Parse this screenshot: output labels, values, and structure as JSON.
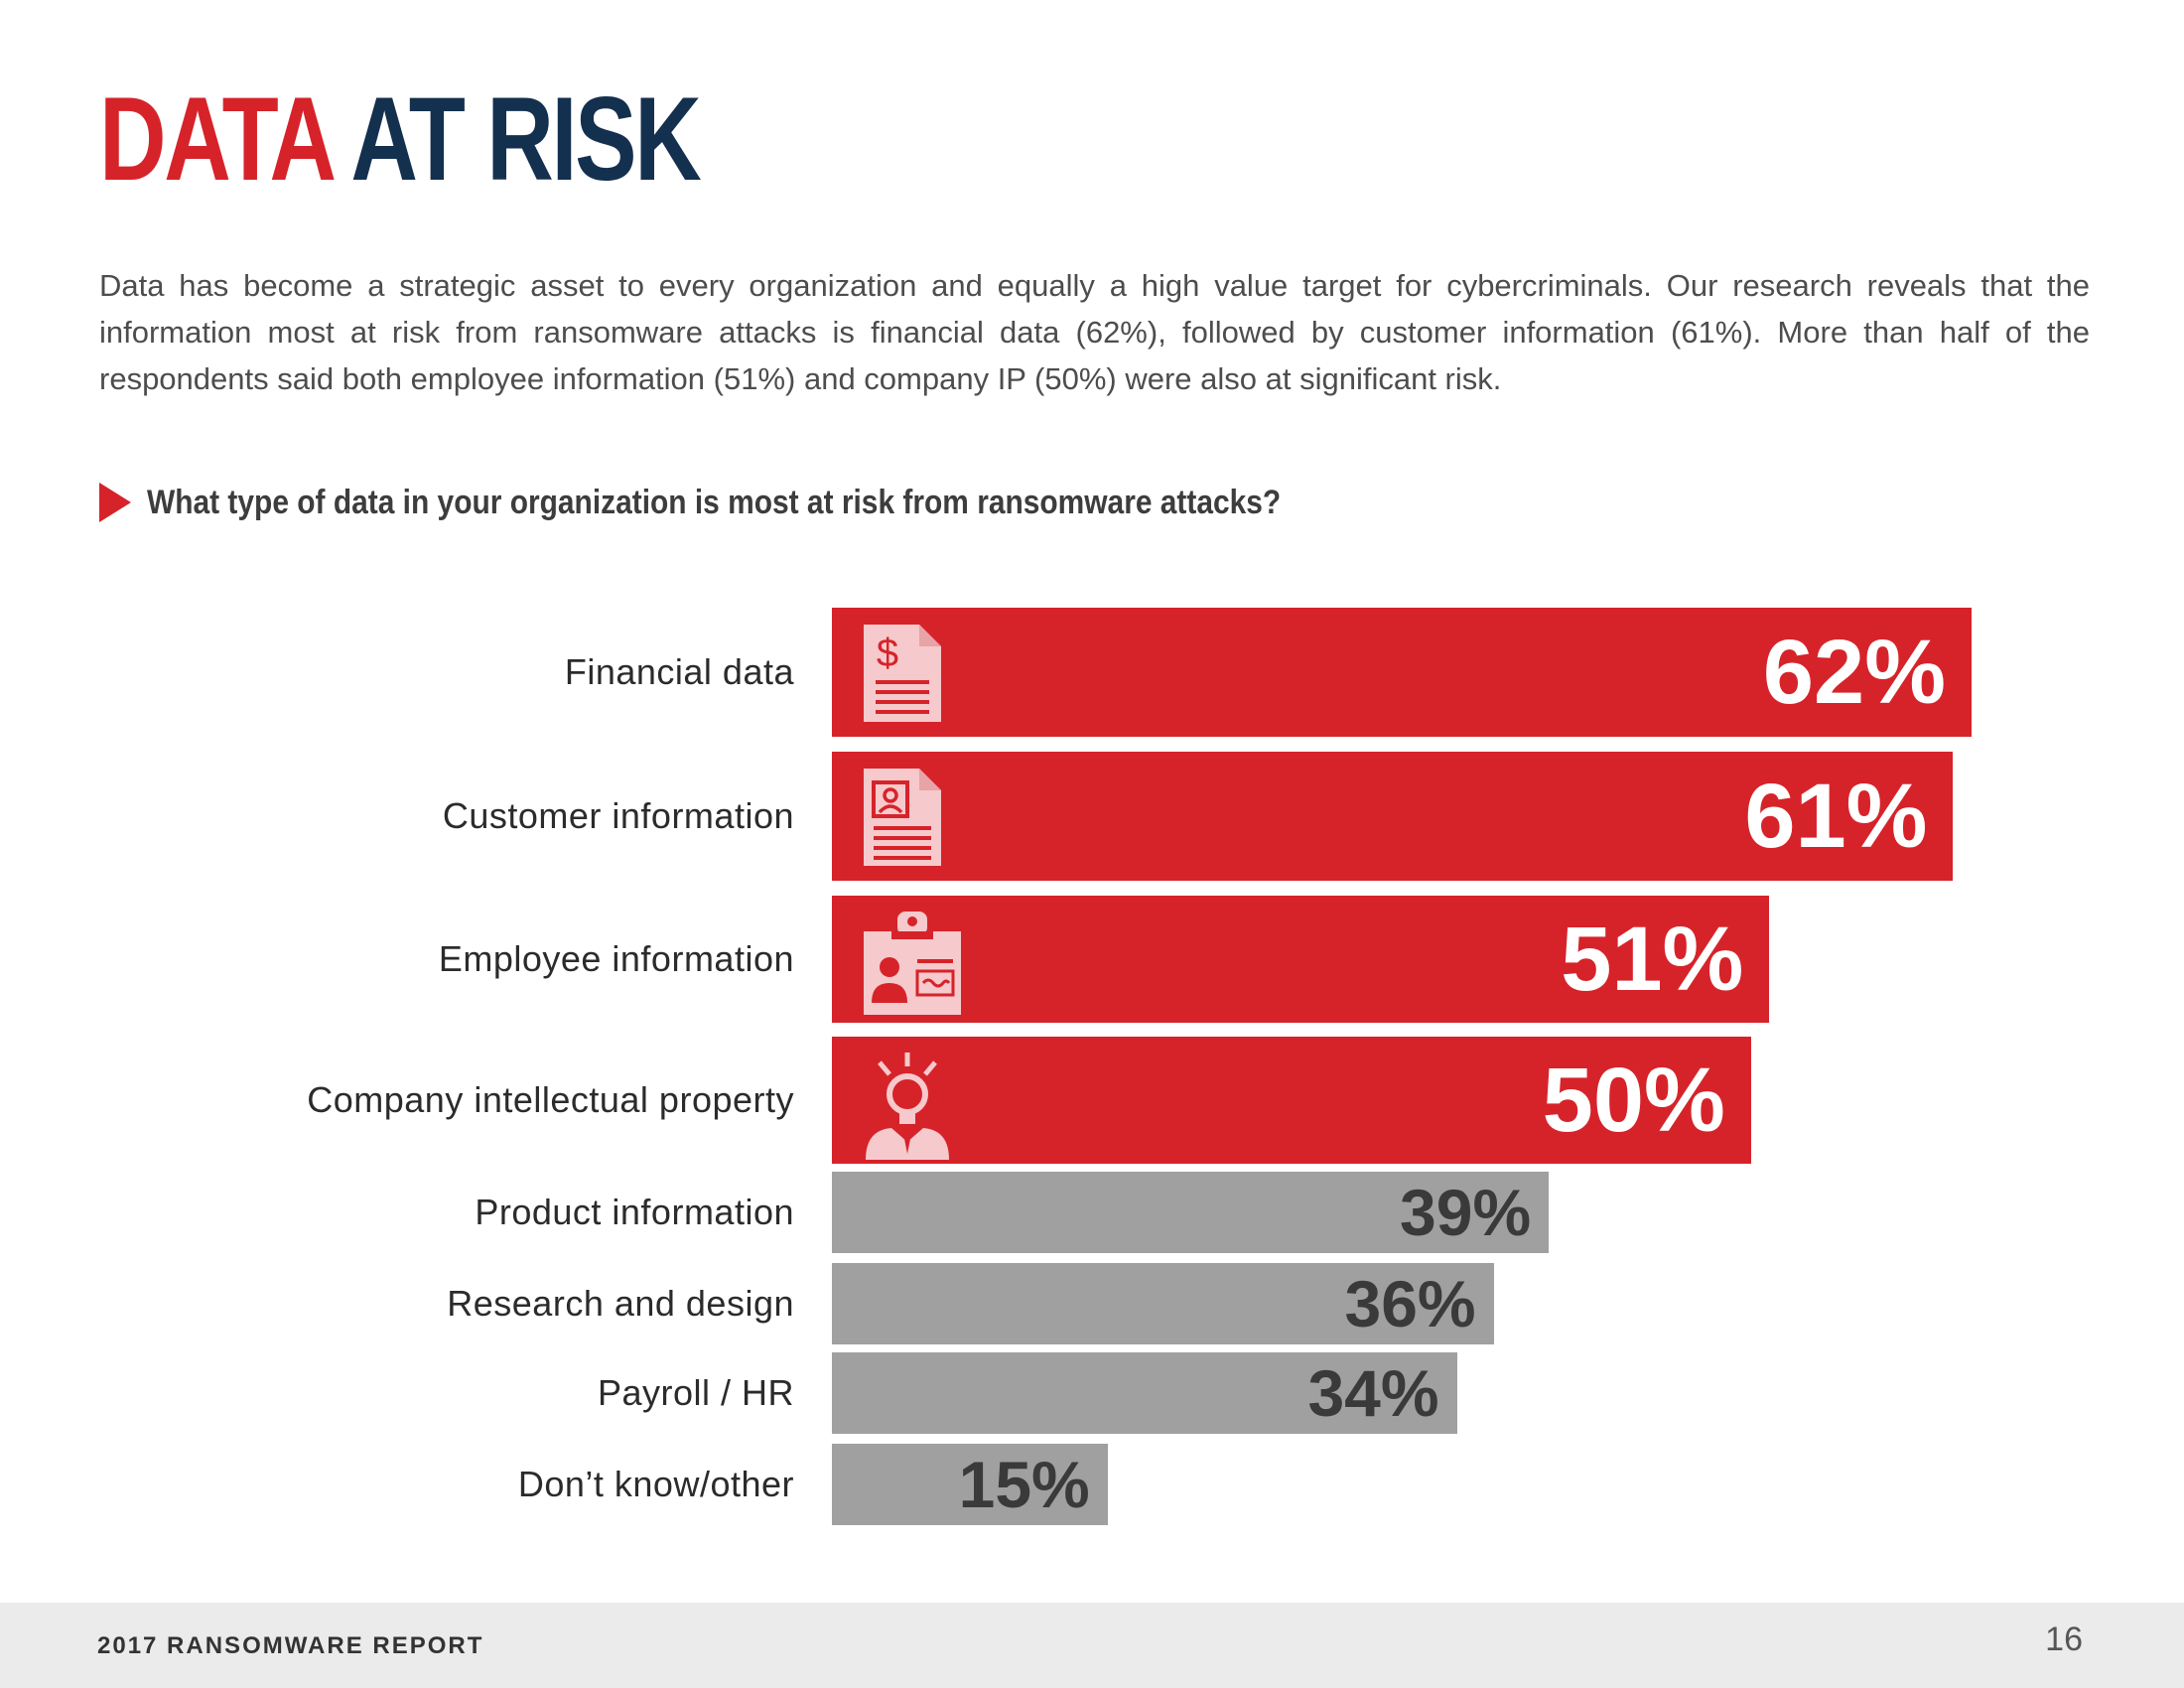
{
  "header": {
    "title_part1": "DATA",
    "title_part2": "AT RISK"
  },
  "intro": {
    "text": "Data has become a strategic asset to every organization and equally a high value target for cybercriminals. Our research reveals that the information most at risk from ransomware attacks is financial data (62%), followed by customer information (61%). More than half of the respondents said both employee information (51%) and company IP (50%) were also at significant risk."
  },
  "question": {
    "text": "What type of data in your organization is most at risk from ransomware attacks?"
  },
  "colors": {
    "accent_red": "#d6232a",
    "navy": "#14304f",
    "bar_grey": "#a0a0a0",
    "icon_pink": "#f6c9cc"
  },
  "chart_data": {
    "type": "bar",
    "orientation": "horizontal",
    "title": "What type of data in your organization is most at risk from ransomware attacks?",
    "xlabel": "",
    "ylabel": "",
    "xlim": [
      0,
      62
    ],
    "categories": [
      "Financial data",
      "Customer information",
      "Employee information",
      "Company intellectual property",
      "Product information",
      "Research and design",
      "Payroll / HR",
      "Don’t know/other"
    ],
    "values": [
      62,
      61,
      51,
      50,
      39,
      36,
      34,
      15
    ],
    "value_labels": [
      "62%",
      "61%",
      "51%",
      "50%",
      "39%",
      "36%",
      "34%",
      "15%"
    ],
    "highlighted": [
      true,
      true,
      true,
      true,
      false,
      false,
      false,
      false
    ],
    "icons": [
      "financial-document-icon",
      "customer-profile-document-icon",
      "employee-id-badge-icon",
      "lightbulb-head-icon",
      null,
      null,
      null,
      null
    ]
  },
  "footer": {
    "report_name": "2017 RANSOMWARE REPORT",
    "page_number": "16"
  }
}
